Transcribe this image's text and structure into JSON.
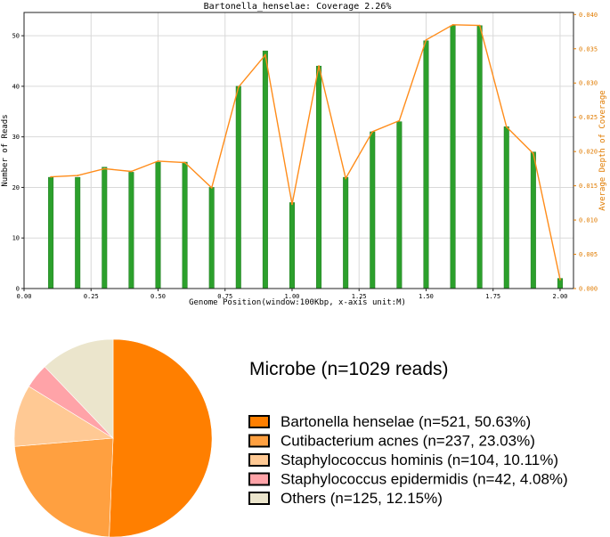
{
  "chart_data": [
    {
      "type": "bar",
      "title": "Bartonella_henselae: Coverage 2.26%",
      "xlabel": "Genome Position(window:100Kbp, x-axis unit:M)",
      "ylabel": "Number of Reads",
      "ylabel_right": "Average Depth of Coverage",
      "xlim": [
        0,
        2.05
      ],
      "ylim": [
        0,
        54.6
      ],
      "ylim_right": [
        0,
        0.0403
      ],
      "grid": true,
      "x_ticks": [
        "0.00",
        "0.25",
        "0.50",
        "0.75",
        "1.00",
        "1.25",
        "1.50",
        "1.75",
        "2.00"
      ],
      "y_ticks": [
        "0",
        "10",
        "20",
        "30",
        "40",
        "50"
      ],
      "y_ticks_right": [
        "0.000",
        "0.005",
        "0.010",
        "0.015",
        "0.020",
        "0.025",
        "0.030",
        "0.035",
        "0.040"
      ],
      "x": [
        0.1,
        0.2,
        0.3,
        0.4,
        0.5,
        0.6,
        0.7,
        0.8,
        0.9,
        1.0,
        1.1,
        1.2,
        1.3,
        1.4,
        1.5,
        1.6,
        1.7,
        1.8,
        1.9,
        2.0
      ],
      "series": [
        {
          "axis": "left",
          "type": "bar",
          "color": "#2ca02c",
          "values": [
            22,
            22,
            24,
            23,
            25,
            25,
            20,
            40,
            47,
            17,
            44,
            22,
            31,
            33,
            49,
            52,
            52,
            32,
            27,
            2
          ]
        },
        {
          "axis": "right",
          "type": "line",
          "color": "#ff8c1a",
          "values": [
            0.0163,
            0.0165,
            0.0175,
            0.0171,
            0.0186,
            0.0184,
            0.0147,
            0.0294,
            0.0341,
            0.0123,
            0.0325,
            0.0161,
            0.0229,
            0.0245,
            0.0363,
            0.0385,
            0.0384,
            0.0236,
            0.0197,
            0.0013
          ]
        }
      ]
    },
    {
      "type": "pie",
      "title": "Microbe (n=1029 reads)",
      "slices": [
        {
          "label": "Bartonella henselae (n=521, 50.63%)",
          "value": 521,
          "color": "#ff7f00"
        },
        {
          "label": "Cutibacterium acnes (n=237, 23.03%)",
          "value": 237,
          "color": "#ffa040"
        },
        {
          "label": "Staphylococcus hominis (n=104, 10.11%)",
          "value": 104,
          "color": "#ffc994"
        },
        {
          "label": "Staphylococcus epidermidis (n=42, 4.08%)",
          "value": 42,
          "color": "#ffa3a8"
        },
        {
          "label": "Others (n=125, 12.15%)",
          "value": 125,
          "color": "#ebe5cc"
        }
      ]
    }
  ]
}
